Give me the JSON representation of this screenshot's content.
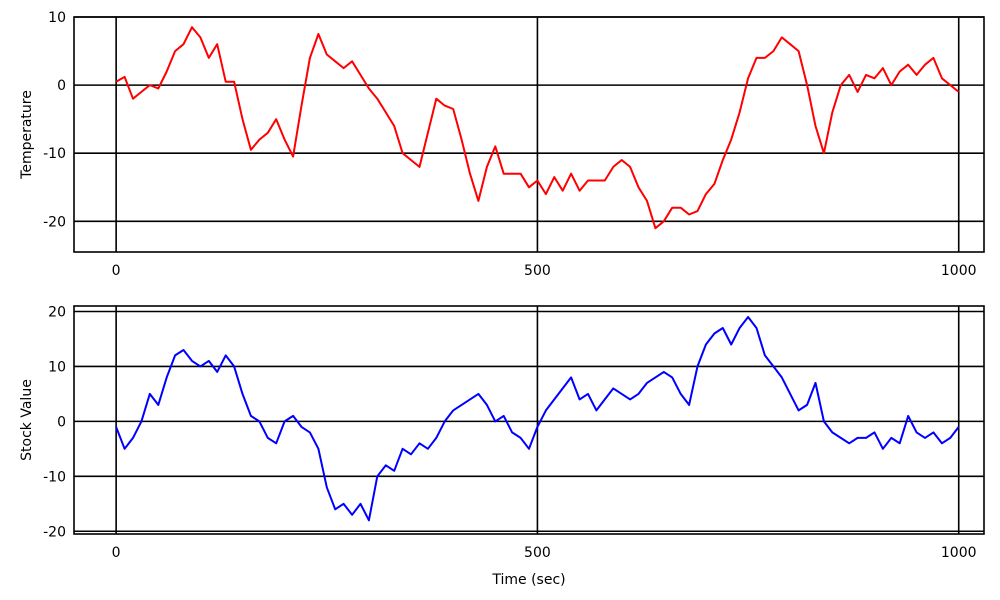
{
  "chart_data": [
    {
      "type": "line",
      "xlabel": "",
      "ylabel": "Temperature",
      "xlim": [
        -50,
        1030
      ],
      "ylim": [
        -24.5,
        10
      ],
      "xticks": [
        0,
        500,
        1000
      ],
      "xtick_labels": [
        "0",
        "500",
        "1000"
      ],
      "yticks": [
        -20,
        -10,
        0,
        10
      ],
      "ytick_labels": [
        "-20",
        "-10",
        "0",
        "10"
      ],
      "grid": true,
      "series": [
        {
          "color": "#ff0000",
          "x": [
            0,
            10,
            20,
            30,
            40,
            50,
            60,
            70,
            80,
            90,
            100,
            110,
            120,
            130,
            140,
            150,
            160,
            170,
            180,
            190,
            200,
            210,
            220,
            230,
            240,
            250,
            260,
            270,
            280,
            290,
            300,
            310,
            320,
            330,
            340,
            350,
            360,
            370,
            380,
            390,
            400,
            410,
            420,
            430,
            440,
            450,
            460,
            470,
            480,
            490,
            500,
            510,
            520,
            530,
            540,
            550,
            560,
            570,
            580,
            590,
            600,
            610,
            620,
            630,
            640,
            650,
            660,
            670,
            680,
            690,
            700,
            710,
            720,
            730,
            740,
            750,
            760,
            770,
            780,
            790,
            800,
            810,
            820,
            830,
            840,
            850,
            860,
            870,
            880,
            890,
            900,
            910,
            920,
            930,
            940,
            950,
            960,
            970,
            980,
            990,
            1000
          ],
          "y": [
            0.5,
            1.2,
            -2,
            -1,
            0,
            -0.5,
            2,
            5,
            6,
            8.5,
            7,
            4,
            6,
            0.5,
            0.5,
            -5,
            -9.5,
            -8,
            -7,
            -5,
            -8,
            -10.5,
            -3,
            4,
            7.5,
            4.5,
            3.5,
            2.5,
            3.5,
            1.5,
            -0.5,
            -2,
            -4,
            -6,
            -10,
            -11,
            -12,
            -7,
            -2,
            -3,
            -3.5,
            -8,
            -13,
            -17,
            -12,
            -9,
            -13,
            -13,
            -13,
            -15,
            -14,
            -16,
            -13.5,
            -15.5,
            -13,
            -15.5,
            -14,
            -14,
            -14,
            -12,
            -11,
            -12,
            -15,
            -17,
            -21,
            -20,
            -18,
            -18,
            -19,
            -18.5,
            -16,
            -14.5,
            -11,
            -8,
            -4,
            1,
            4,
            4,
            5,
            7,
            6,
            5,
            0,
            -6,
            -10,
            -4,
            0,
            1.5,
            -1,
            1.5,
            1,
            2.5,
            0,
            2,
            3,
            1.5,
            3,
            4,
            1,
            0,
            -1
          ]
        }
      ]
    },
    {
      "type": "line",
      "xlabel": "Time (sec)",
      "ylabel": "Stock Value",
      "xlim": [
        -50,
        1030
      ],
      "ylim": [
        -20.5,
        21
      ],
      "xticks": [
        0,
        500,
        1000
      ],
      "xtick_labels": [
        "0",
        "500",
        "1000"
      ],
      "yticks": [
        -20,
        -10,
        0,
        10,
        20
      ],
      "ytick_labels": [
        "-20",
        "-10",
        "0",
        "10",
        "20"
      ],
      "grid": true,
      "series": [
        {
          "color": "#0000ff",
          "x": [
            0,
            10,
            20,
            30,
            40,
            50,
            60,
            70,
            80,
            90,
            100,
            110,
            120,
            130,
            140,
            150,
            160,
            170,
            180,
            190,
            200,
            210,
            220,
            230,
            240,
            250,
            260,
            270,
            280,
            290,
            300,
            310,
            320,
            330,
            340,
            350,
            360,
            370,
            380,
            390,
            400,
            410,
            420,
            430,
            440,
            450,
            460,
            470,
            480,
            490,
            500,
            510,
            520,
            530,
            540,
            550,
            560,
            570,
            580,
            590,
            600,
            610,
            620,
            630,
            640,
            650,
            660,
            670,
            680,
            690,
            700,
            710,
            720,
            730,
            740,
            750,
            760,
            770,
            780,
            790,
            800,
            810,
            820,
            830,
            840,
            850,
            860,
            870,
            880,
            890,
            900,
            910,
            920,
            930,
            940,
            950,
            960,
            970,
            980,
            990,
            1000
          ],
          "y": [
            -1,
            -5,
            -3,
            0,
            5,
            3,
            8,
            12,
            13,
            11,
            10,
            11,
            9,
            12,
            10,
            5,
            1,
            0,
            -3,
            -4,
            0,
            1,
            -1,
            -2,
            -5,
            -12,
            -16,
            -15,
            -17,
            -15,
            -18,
            -10,
            -8,
            -9,
            -5,
            -6,
            -4,
            -5,
            -3,
            0,
            2,
            3,
            4,
            5,
            3,
            0,
            1,
            -2,
            -3,
            -5,
            -1,
            2,
            4,
            6,
            8,
            4,
            5,
            2,
            4,
            6,
            5,
            4,
            5,
            7,
            8,
            9,
            8,
            5,
            3,
            10,
            14,
            16,
            17,
            14,
            17,
            19,
            17,
            12,
            10,
            8,
            5,
            2,
            3,
            7,
            0,
            -2,
            -3,
            -4,
            -3,
            -3,
            -2,
            -5,
            -3,
            -4,
            1,
            -2,
            -3,
            -2,
            -4,
            -3,
            -1
          ]
        }
      ]
    }
  ]
}
